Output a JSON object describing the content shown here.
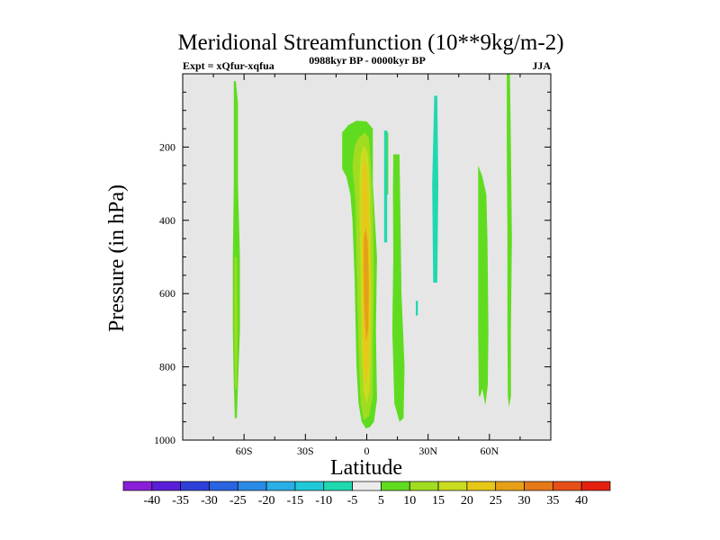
{
  "chart_data": {
    "type": "heatmap",
    "title": "Meridional Streamfunction (10**9kg/m-2)",
    "subtitle_left": "Expt = xQfur-xqfua",
    "subtitle_center": "0988kyr BP - 0000kyr BP",
    "subtitle_right": "JJA",
    "xlabel": "Latitude",
    "ylabel": "Pressure (in hPa)",
    "xlim": [
      -90,
      90
    ],
    "ylim": [
      1000,
      0
    ],
    "y_ticks": [
      {
        "value": 200,
        "label": "200"
      },
      {
        "value": 400,
        "label": "400"
      },
      {
        "value": 600,
        "label": "600"
      },
      {
        "value": 800,
        "label": "800"
      },
      {
        "value": 1000,
        "label": "1000"
      }
    ],
    "x_ticks": [
      {
        "value": -60,
        "label": "60S"
      },
      {
        "value": -30,
        "label": "30S"
      },
      {
        "value": 0,
        "label": "0"
      },
      {
        "value": 30,
        "label": "30N"
      },
      {
        "value": 60,
        "label": "60N"
      }
    ],
    "background_color": "#e6e6e6",
    "colorbar": {
      "labels": [
        "-40",
        "-35",
        "-30",
        "-25",
        "-20",
        "-15",
        "-10",
        "-5",
        "5",
        "10",
        "15",
        "20",
        "25",
        "30",
        "35",
        "40"
      ],
      "colors": [
        "#8a1fd8",
        "#5a1fd8",
        "#2e3fd8",
        "#2a63e0",
        "#2a8ae6",
        "#2aaee6",
        "#20c8d8",
        "#20d8b0",
        "#ececec",
        "#60dc20",
        "#a0dc20",
        "#c8dc20",
        "#e6c818",
        "#e6a018",
        "#e67818",
        "#e65018",
        "#e62010"
      ]
    },
    "regions": [
      {
        "id": "sh-polar-band",
        "level": "5",
        "color": "#60dc20",
        "points": [
          [
            -65,
            20
          ],
          [
            -64,
            20
          ],
          [
            -63,
            80
          ],
          [
            -63,
            300
          ],
          [
            -62,
            500
          ],
          [
            -62,
            700
          ],
          [
            -63,
            850
          ],
          [
            -63.5,
            940
          ],
          [
            -64.5,
            940
          ],
          [
            -65,
            850
          ],
          [
            -65.5,
            700
          ],
          [
            -65.5,
            500
          ],
          [
            -65,
            300
          ],
          [
            -65,
            80
          ]
        ]
      },
      {
        "id": "sh-polar-core",
        "level": "10",
        "color": "#a0dc20",
        "points": [
          [
            -64.6,
            500
          ],
          [
            -63.6,
            500
          ],
          [
            -63.2,
            700
          ],
          [
            -63.6,
            860
          ],
          [
            -64.4,
            860
          ],
          [
            -64.8,
            700
          ]
        ]
      },
      {
        "id": "eq-cell-outer",
        "level": "5",
        "color": "#60dc20",
        "points": [
          [
            -12,
            230
          ],
          [
            -12,
            160
          ],
          [
            -9,
            140
          ],
          [
            -5,
            128
          ],
          [
            0,
            130
          ],
          [
            3,
            150
          ],
          [
            3,
            300
          ],
          [
            5,
            500
          ],
          [
            4.5,
            700
          ],
          [
            5,
            890
          ],
          [
            3.5,
            950
          ],
          [
            1.5,
            965
          ],
          [
            -0.5,
            968
          ],
          [
            -2.5,
            950
          ],
          [
            -4,
            900
          ],
          [
            -5,
            800
          ],
          [
            -6,
            550
          ],
          [
            -7,
            400
          ],
          [
            -8,
            330
          ],
          [
            -10,
            280
          ],
          [
            -12,
            260
          ]
        ]
      },
      {
        "id": "eq-cell-10",
        "level": "10",
        "color": "#a0dc20",
        "points": [
          [
            -7,
            250
          ],
          [
            -6,
            200
          ],
          [
            -4,
            175
          ],
          [
            -1,
            160
          ],
          [
            1,
            175
          ],
          [
            2,
            250
          ],
          [
            3,
            350
          ],
          [
            3.5,
            550
          ],
          [
            3,
            750
          ],
          [
            3,
            880
          ],
          [
            1,
            935
          ],
          [
            -1.5,
            945
          ],
          [
            -3,
            900
          ],
          [
            -4,
            750
          ],
          [
            -5,
            500
          ],
          [
            -5.5,
            350
          ]
        ]
      },
      {
        "id": "eq-cell-15",
        "level": "15",
        "color": "#c8dc20",
        "points": [
          [
            -3.5,
            280
          ],
          [
            -3,
            220
          ],
          [
            -1.5,
            195
          ],
          [
            0.5,
            215
          ],
          [
            1.5,
            300
          ],
          [
            2,
            450
          ],
          [
            2.3,
            600
          ],
          [
            2,
            750
          ],
          [
            1.5,
            860
          ],
          [
            0,
            900
          ],
          [
            -1.5,
            870
          ],
          [
            -2.5,
            750
          ],
          [
            -3,
            550
          ],
          [
            -3.5,
            400
          ]
        ]
      },
      {
        "id": "eq-cell-20",
        "level": "20",
        "color": "#e6c818",
        "points": [
          [
            -2.5,
            300
          ],
          [
            -1.5,
            235
          ],
          [
            0,
            255
          ],
          [
            0.8,
            350
          ],
          [
            1.4,
            500
          ],
          [
            1.5,
            650
          ],
          [
            1,
            800
          ],
          [
            -0.5,
            850
          ],
          [
            -1.8,
            780
          ],
          [
            -2,
            600
          ],
          [
            -2.3,
            420
          ]
        ]
      },
      {
        "id": "eq-cell-25",
        "level": "25",
        "color": "#e6a018",
        "points": [
          [
            -1.5,
            450
          ],
          [
            -0.5,
            420
          ],
          [
            0.5,
            460
          ],
          [
            1,
            580
          ],
          [
            0.8,
            700
          ],
          [
            -0.3,
            730
          ],
          [
            -1.2,
            650
          ],
          [
            -1.6,
            540
          ]
        ]
      },
      {
        "id": "ne-thin-green",
        "level": "5",
        "color": "#60dc20",
        "points": [
          [
            9.5,
            160
          ],
          [
            10.5,
            160
          ],
          [
            10.5,
            330
          ],
          [
            9.5,
            330
          ]
        ]
      },
      {
        "id": "ne-tall-green",
        "level": "5",
        "color": "#60dc20",
        "points": [
          [
            13,
            220
          ],
          [
            16,
            220
          ],
          [
            16.5,
            400
          ],
          [
            17,
            600
          ],
          [
            18.5,
            800
          ],
          [
            18,
            940
          ],
          [
            16,
            950
          ],
          [
            13.5,
            900
          ],
          [
            12.5,
            700
          ],
          [
            13,
            500
          ],
          [
            12.8,
            320
          ]
        ]
      },
      {
        "id": "neg-strip-a",
        "level": "-5",
        "color": "#20d8b0",
        "points": [
          [
            8.5,
            155
          ],
          [
            10,
            155
          ],
          [
            10,
            460
          ],
          [
            8.5,
            460
          ]
        ]
      },
      {
        "id": "neg-strip-b",
        "level": "-5",
        "color": "#20d8b0",
        "points": [
          [
            33,
            60
          ],
          [
            34.5,
            60
          ],
          [
            35,
            300
          ],
          [
            34.5,
            570
          ],
          [
            32.5,
            570
          ],
          [
            32,
            300
          ]
        ]
      },
      {
        "id": "neg-dot",
        "level": "-5",
        "color": "#20d8b0",
        "points": [
          [
            24,
            620
          ],
          [
            25,
            620
          ],
          [
            25,
            660
          ],
          [
            24,
            660
          ]
        ]
      },
      {
        "id": "nh-mid-band",
        "level": "5",
        "color": "#60dc20",
        "points": [
          [
            54.5,
            250
          ],
          [
            56.5,
            280
          ],
          [
            58.5,
            330
          ],
          [
            59,
            450
          ],
          [
            59.5,
            700
          ],
          [
            59.2,
            850
          ],
          [
            58,
            905
          ],
          [
            56.5,
            860
          ],
          [
            55.5,
            880
          ],
          [
            54.8,
            880
          ],
          [
            54.5,
            700
          ],
          [
            54.5,
            500
          ]
        ]
      },
      {
        "id": "nh-polar-band",
        "level": "5",
        "color": "#60dc20",
        "points": [
          [
            68.5,
            0
          ],
          [
            70,
            0
          ],
          [
            70.5,
            200
          ],
          [
            71,
            450
          ],
          [
            70.5,
            700
          ],
          [
            70.5,
            880
          ],
          [
            69.5,
            910
          ],
          [
            69,
            880
          ],
          [
            68.8,
            700
          ],
          [
            68.8,
            450
          ],
          [
            68.5,
            200
          ]
        ]
      }
    ]
  }
}
